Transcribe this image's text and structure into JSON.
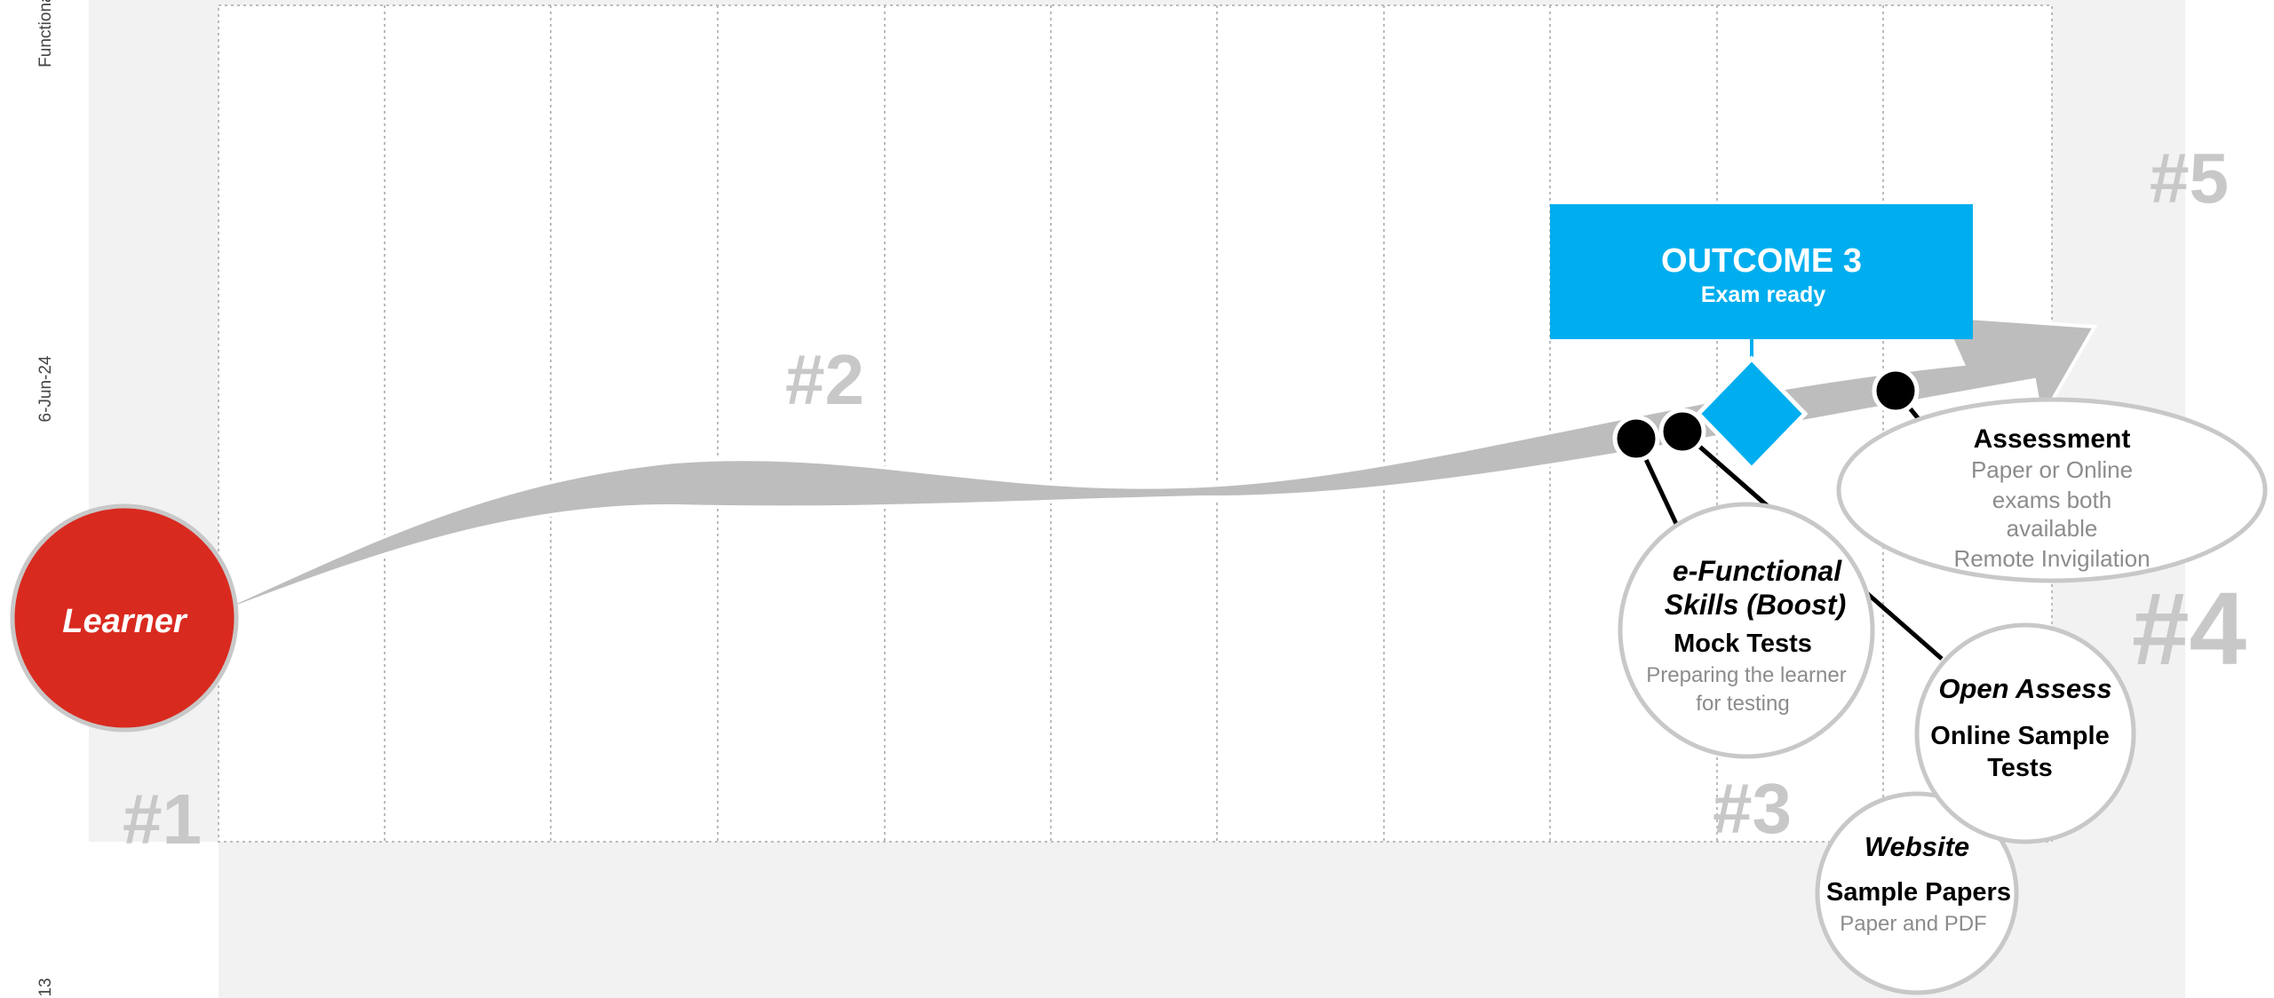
{
  "side_labels": {
    "top": "Functional",
    "middle": "6-Jun-24",
    "bottom": "13"
  },
  "markers": {
    "m1": "#1",
    "m2": "#2",
    "m3": "#3",
    "m4": "#4",
    "m5": "#5"
  },
  "learner": {
    "label": "Learner"
  },
  "outcome": {
    "title": "OUTCOME 3",
    "subtitle": "Exam ready"
  },
  "assessment": {
    "title": "Assessment",
    "line1": "Paper or Online",
    "line2": "exams both",
    "line3": "available",
    "line4": "Remote Invigilation"
  },
  "efunctional": {
    "title1": "e-Functional",
    "title2": "Skills (Boost)",
    "subtitle": "Mock Tests",
    "line1": "Preparing the learner",
    "line2": "for testing"
  },
  "open_assess": {
    "title": "Open Assess",
    "line1": "Online Sample",
    "line2": "Tests"
  },
  "website": {
    "title": "Website",
    "subtitle": "Sample Papers",
    "line1": "Paper and PDF"
  },
  "colors": {
    "learner_red": "#d92a1f",
    "outcome_blue": "#00aeef",
    "arrow_gray": "#bdbdbd",
    "marker_gray": "#c8c8c8",
    "panel_gray": "#f2f2f2",
    "text_gray": "#8c8c8c"
  }
}
